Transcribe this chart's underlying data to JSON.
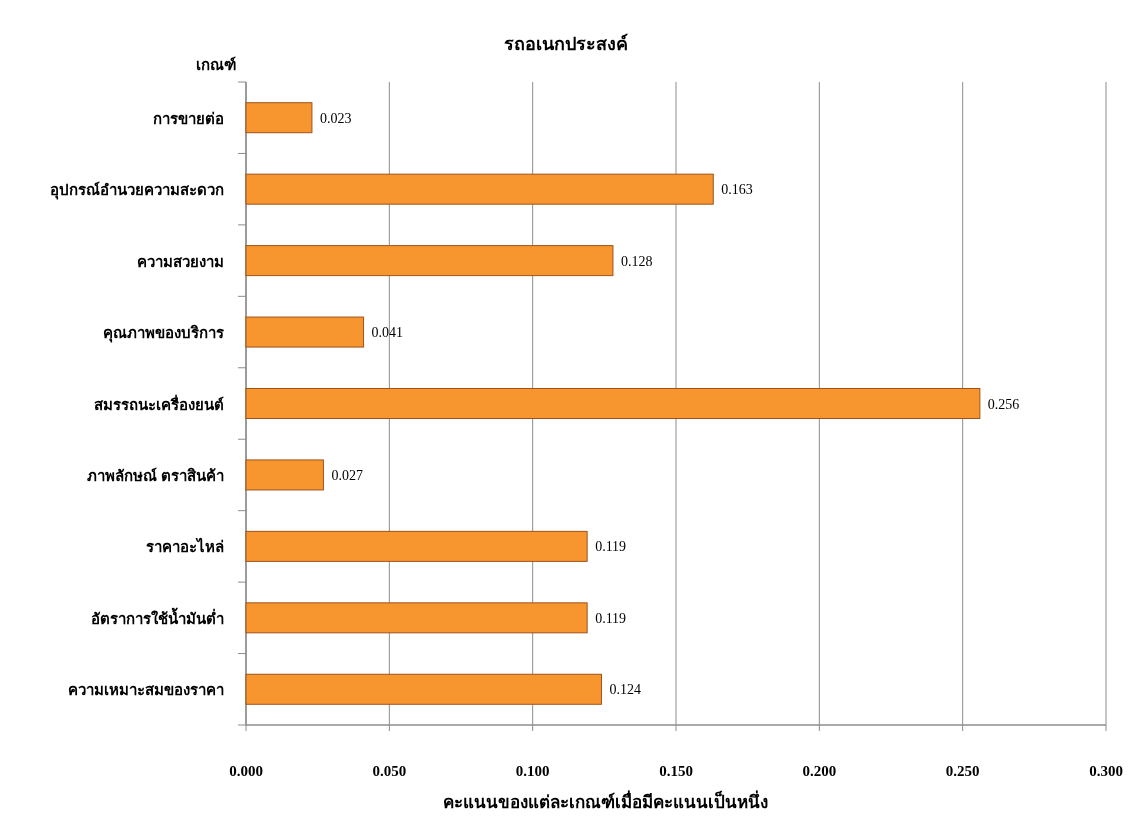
{
  "chart_data": {
    "type": "bar",
    "orientation": "horizontal",
    "title": "รถอเนกประสงค์",
    "ylabel": "เกณฑ์",
    "xlabel": "คะแนนของแต่ละเกณฑ์เมื่อมีคะแนนเป็นหนึ่ง",
    "categories": [
      "การขายต่อ",
      "อุปกรณ์อำนวยความสะดวก",
      "ความสวยงาม",
      "คุณภาพของบริการ",
      "สมรรถนะเครื่องยนต์",
      "ภาพลักษณ์ ตราสินค้า",
      "ราคาอะไหล่",
      "อัตราการใช้น้ำมันต่ำ",
      "ความเหมาะสมของราคา"
    ],
    "values": [
      0.023,
      0.163,
      0.128,
      0.041,
      0.256,
      0.027,
      0.119,
      0.119,
      0.124
    ],
    "color": "#f7962f",
    "xlim": [
      0,
      0.3
    ],
    "xticks": [
      {
        "value": 0,
        "label": "0.000"
      },
      {
        "value": 0.05,
        "label": "0.050"
      },
      {
        "value": 0.1,
        "label": "0.100"
      },
      {
        "value": 0.15,
        "label": "0.150"
      },
      {
        "value": 0.2,
        "label": "0.200"
      },
      {
        "value": 0.25,
        "label": "0.250"
      },
      {
        "value": 0.3,
        "label": "0.300"
      }
    ],
    "grid": "x",
    "data_labels": true
  }
}
